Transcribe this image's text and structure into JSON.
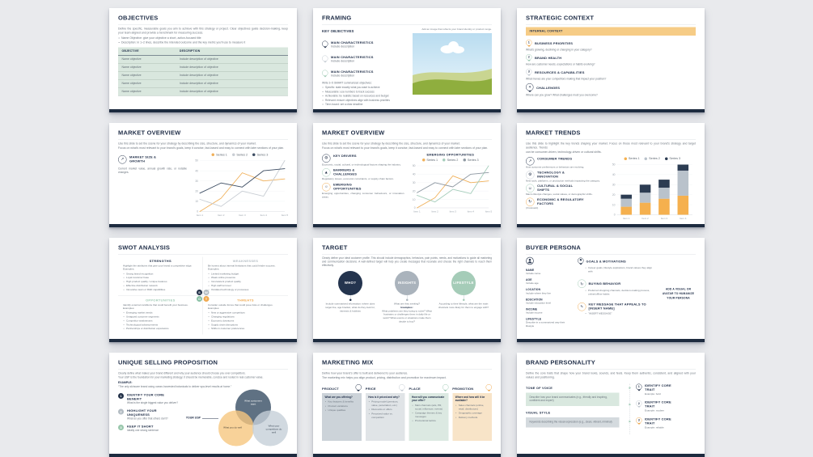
{
  "page": {
    "background": "#e9eaed",
    "footer_bar_color": "#1d2b3f"
  },
  "accent_colors": {
    "navy": "#24324a",
    "orange": "#f0a94f",
    "green": "#9fcab4",
    "gray": "#c3cad1"
  },
  "slides": {
    "objectives": {
      "title": "OBJECTIVES",
      "intro": "Define the specific, measurable goals you aim to achieve with this strategy or project. Clear objectives guide decision-making, keep your team aligned and provide a benchmark for measuring success.",
      "bullets": [
        "Name Objective: give your objective a short, action-focused title",
        "Description: in 1–2 lines, describe the intended outcome and the key metric you'll use to measure it"
      ],
      "table": {
        "headers": [
          "OBJECTIVE",
          "DESCRIPTION"
        ],
        "rows": [
          {
            "objective": "Name objective",
            "description": "Include description of objective"
          },
          {
            "objective": "Name objective",
            "description": "Include description of objective"
          },
          {
            "objective": "Name objective",
            "description": "Include description of objective"
          },
          {
            "objective": "Name objective",
            "description": "Include description of objective"
          },
          {
            "objective": "Name objective",
            "description": "Include description of objective"
          }
        ]
      }
    },
    "framing": {
      "title": "FRAMING",
      "section": "KEY OBJECTIVES",
      "pins": [
        {
          "label": "MAIN CHARACTERISTICS",
          "desc": "Include description"
        },
        {
          "label": "MAIN CHARACTERISTICS",
          "desc": "Include description"
        },
        {
          "label": "MAIN CHARACTERISTICS",
          "desc": "Include description"
        }
      ],
      "image_caption": "Add an image that reflects your brand identity or product range.",
      "smart_intro": "Write 3–5 SMART summarized objectives:",
      "smart_bullets": [
        "Specific: state exactly what you want to achieve",
        "Measurable: use numbers to track success",
        "Achievable: be realistic based on resources and budget",
        "Relevant: ensure objectives align with business priorities",
        "Time-bound: set a clear deadline"
      ]
    },
    "strategic_context": {
      "title": "STRATEGIC CONTEXT",
      "banner": "INTERNAL CONTEXT",
      "items": [
        {
          "num": "1",
          "label": "BUSINESS PRIORITIES",
          "desc": "What's growing, declining or changing in your category?"
        },
        {
          "num": "2",
          "label": "BRAND HEALTH",
          "desc": "How are customer needs, expectations or habits evolving?"
        },
        {
          "num": "3",
          "label": "RESOURCES & CAPABILITIES",
          "desc": "What moves are your competitors making that impact your position?"
        },
        {
          "num": "4",
          "label": "CHALLENGES",
          "desc": "Where can you grow? What challenges must you overcome?"
        }
      ]
    },
    "market_overview_1": {
      "title": "MARKET OVERVIEW",
      "intro1": "Use this slide to set the scene for your strategy by describing the size, structure, and dynamics of your market.",
      "intro2": "Focus on what's most relevant to your brand's goals, keep it concise, fact-based and easy to connect with later sections of your plan.",
      "feature": {
        "label": "MARKET SIZE & GROWTH",
        "desc": "Current market value, annual growth rate, or notable changes."
      }
    },
    "market_overview_2": {
      "title": "MARKET OVERVIEW",
      "intro1": "Use this slide to set the scene for your strategy by describing the size, structure, and dynamics of your market.",
      "intro2": "Focus on what's most relevant to your brand's goals, keep it concise, fact-based and easy to connect with later sections of your plan.",
      "items": [
        {
          "label": "KEY DRIVERS",
          "desc": "Economic, social, cultural, or technological factors shaping the industry."
        },
        {
          "label": "BARRIERS & CHALLENGES",
          "desc": "Regulatory issues, economic constraints, or supply chain factors."
        },
        {
          "label": "EMERGING OPPORTUNITIES",
          "desc": "Emerging opportunities, changing consumer behaviours, or innovation areas."
        }
      ]
    },
    "market_trends": {
      "title": "MARKET TRENDS",
      "intro1": "Use this slide to highlight the key trends shaping your market. Focus on those most relevant to your brand's strategy and target audience. Trends",
      "intro2": "can be consumer-driven, technology-driven or cultural shifts.",
      "items": [
        {
          "label": "CONSUMER TRENDS",
          "desc": "How customer preferences or behaviors are evolving."
        },
        {
          "label": "TECHNOLOGY & INNOVATION",
          "desc": "New tools, platforms, or production methods impacting the category."
        },
        {
          "label": "CULTURAL & SOCIAL SHIFTS",
          "desc": "Macro lifestyle changes, social values, or demographic shifts."
        },
        {
          "label": "ECONOMIC & REGULATORY FACTORS",
          "desc": "(if relevant)"
        }
      ]
    },
    "swot": {
      "title": "SWOT ANALYSIS",
      "quadrants": [
        {
          "key": "S",
          "header": "STRENGTHS",
          "intro": "Highlight the attributes that give your brand a competitive edge. Examples:",
          "bullets": [
            "Strong brand recognition",
            "Loyal customer base",
            "High product quality / unique features",
            "Effective distribution network",
            "Innovative team or R&D capabilities"
          ]
        },
        {
          "key": "W",
          "header": "WEAKNESSES",
          "intro": "Be honest about internal limitations that could hinder success. Examples:",
          "bullets": [
            "Limited marketing budget",
            "Weak online presence",
            "Inconsistent product quality",
            "High staff turnover",
            "Outdated technology or processes"
          ]
        },
        {
          "key": "O",
          "header": "OPPORTUNITIES",
          "intro": "Identify external conditions that could benefit your business. Examples:",
          "bullets": [
            "Emerging market trends",
            "Untapped customer segments",
            "Competitor weaknesses",
            "Technological advancements",
            "Partnerships or distribution expansions"
          ]
        },
        {
          "key": "T",
          "header": "THREATS",
          "intro": "Consider outside forces that could pose risks or challenges. Examples:",
          "bullets": [
            "New or aggressive competitors",
            "Changing regulations",
            "Economic downturns",
            "Supply chain disruptions",
            "Shifts in customer preferences"
          ]
        }
      ]
    },
    "target": {
      "title": "TARGET",
      "intro": "Clearly define your ideal customer profile. This should include demographics, behaviors, pain points, needs, and motivations to guide all marketing and communication decisions. A well-defined target will help you create messages that resonate and choose the right channels to reach them effectively.",
      "who": {
        "label": "WHO?",
        "desc": "Include summarized information: where does target live, age bracket, what do they look for, interests & hobbies"
      },
      "insights": {
        "label": "INSIGHTS",
        "lead": "What are they seeking?",
        "examples_label": "Examples:",
        "desc": "What problems are they trying to solve? What frustrates or challenges them in daily life or work? What events or situations make them decide to buy?"
      },
      "lifestyle": {
        "label": "LIFESTYLE",
        "desc": "According to their lifestyle, what are the main channels more likely for them to engage with?"
      }
    },
    "buyer_persona": {
      "title": "BUYER PERSONA",
      "profile_fields": [
        {
          "label": "NAME",
          "value": "Include name"
        },
        {
          "label": "AGE",
          "value": "Include age"
        },
        {
          "label": "LOCATION",
          "value": "Include where they live"
        },
        {
          "label": "EDUCATION",
          "value": "Include education level"
        },
        {
          "label": "INCOME",
          "value": "Include income"
        },
        {
          "label": "LIFESTYLE",
          "value": "Describe in a summarized way their lifestyle"
        }
      ],
      "sections": [
        {
          "label": "GOALS & MOTIVATIONS",
          "bullet": "Career goals, lifestyle aspirations, brand values they align with"
        },
        {
          "label": "BUYING BEHAVIOR",
          "bullet": "Preferred shopping channels, decision-making process, online/offline habits"
        },
        {
          "label": "KEY MESSAGE THAT APPEALS TO [INSERT NAME]",
          "quote": "“INSERT MESSAGE”"
        }
      ],
      "avatar_note": "ADD A VISUAL OR AVATAR TO HUMANIZE YOUR PERSONA"
    },
    "usp": {
      "title": "UNIQUE SELLING PROPOSITION",
      "intro1": "Clearly define what makes your brand different and why your audience should choose you over competitors.",
      "intro2": "Your USP is the foundation for your marketing strategy; it should be memorable, concise and rooted in real customer value.",
      "example_label": "EXAMPLE:",
      "example_text": "“The only skincare brand using ocean-harvested botanicals to deliver spa-level results at home.”",
      "steps": [
        {
          "num": "1",
          "label": "IDENTIFY YOUR CORE BENEFIT",
          "desc": "What is the single biggest value you deliver?"
        },
        {
          "num": "2",
          "label": "HIGHLIGHT YOUR UNIQUENESS",
          "desc": "What do you offer that others don't?"
        },
        {
          "num": "3",
          "label": "KEEP IT SHORT",
          "desc": "Ideally one strong sentence"
        }
      ],
      "venn": {
        "pointer": "YOUR USP",
        "top": "What customers want",
        "left": "What you do well",
        "right": "What your competitors do well"
      }
    },
    "marketing_mix": {
      "title": "MARKETING MIX",
      "intro1": "Define how your brand's offer is built and delivered to your audience.",
      "intro2": "The marketing mix helps you align product, pricing, distribution and promotion for maximum impact.",
      "columns": [
        {
          "name": "PRODUCT",
          "question": "What are you offering?",
          "bullets": [
            "Key features & benefits",
            "Product variations",
            "Unique qualities"
          ]
        },
        {
          "name": "PRICE",
          "question": "How is it priced and why?",
          "bullets": [
            "Pricing model (premium, value, penetration, etc.)",
            "Discounts or offers",
            "Perceived value vs. competition"
          ]
        },
        {
          "name": "PLACE",
          "question": "How will you communicate your offer?",
          "bullets": [
            "Main channels (ads, PR, social, influencer, events)",
            "Campaign themes & key messages",
            "Promotional tactics"
          ]
        },
        {
          "name": "PROMOTION",
          "question": "Where and how will it be available?",
          "bullets": [
            "Sales channels (online, retail, distributors)",
            "Geographic coverage",
            "Delivery methods"
          ]
        }
      ]
    },
    "brand_personality": {
      "title": "BRAND PERSONALITY",
      "intro": "Define the core traits that shape how your brand looks, sounds, and feels. Keep them authentic, consistent, and aligned with your values and positioning.",
      "tone_label": "TONE OF VOICE",
      "tone_text": "Describe how your brand communicates (e.g., friendly and inspiring, confident and expert)",
      "visual_label": "VISUAL STYLE",
      "visual_text": "Keywords describing the visual expression (e.g., clean, vibrant, minimal)",
      "traits": [
        {
          "num": "1",
          "label": "IDENTIFY CORE TRAIT",
          "example": "Example: bold"
        },
        {
          "num": "2",
          "label": "IDENTIFY CORE TRAIT",
          "example": "Example: modern"
        },
        {
          "num": "3",
          "label": "IDENTIFY CORE TRAIT",
          "example": "Example: reliable"
        }
      ]
    }
  },
  "chart_data": [
    {
      "type": "line",
      "title": "",
      "x": [
        "Item 1",
        "Item 2",
        "Item 3",
        "Item 4",
        "Item 5"
      ],
      "ylim": [
        0,
        50
      ],
      "ytick_step": 10,
      "grid": true,
      "legend_position": "top",
      "series": [
        {
          "name": "Series 1",
          "color": "#f0b05a",
          "values": [
            0,
            13,
            38,
            30,
            32
          ]
        },
        {
          "name": "Series 2",
          "color": "#c9ced4",
          "values": [
            12,
            5,
            20,
            15,
            50
          ]
        },
        {
          "name": "Series 3",
          "color": "#3c4c62",
          "values": [
            18,
            28,
            24,
            40,
            42
          ]
        }
      ]
    },
    {
      "type": "line",
      "title": "EMERGING OPPORTUNITIES",
      "x": [
        "Item 1",
        "Item 2",
        "Item 3",
        "Item 4",
        "Item 5"
      ],
      "ylim": [
        0,
        50
      ],
      "ytick_step": 10,
      "grid": true,
      "legend_position": "top",
      "series": [
        {
          "name": "Series 1",
          "color": "#f0b05a",
          "values": [
            0,
            12,
            38,
            30,
            32
          ]
        },
        {
          "name": "Series 2",
          "color": "#a5cdbb",
          "values": [
            15,
            7,
            22,
            17,
            50
          ]
        },
        {
          "name": "Series 3",
          "color": "#8e98a2",
          "values": [
            18,
            30,
            25,
            40,
            42
          ]
        }
      ]
    },
    {
      "type": "stacked-bar",
      "title": "",
      "x": [
        "Item 1",
        "Item 2",
        "Item 3",
        "Item 4"
      ],
      "ylim": [
        0,
        50
      ],
      "ytick_step": 10,
      "grid": true,
      "legend_position": "top",
      "series": [
        {
          "name": "Series 1",
          "color": "#f5b04e",
          "values": [
            8,
            12,
            16,
            19
          ]
        },
        {
          "name": "Series 2",
          "color": "#b9c2cb",
          "values": [
            8,
            10,
            11,
            25
          ]
        },
        {
          "name": "Series 3",
          "color": "#2c3c52",
          "values": [
            4,
            8,
            8,
            6
          ]
        }
      ]
    }
  ]
}
